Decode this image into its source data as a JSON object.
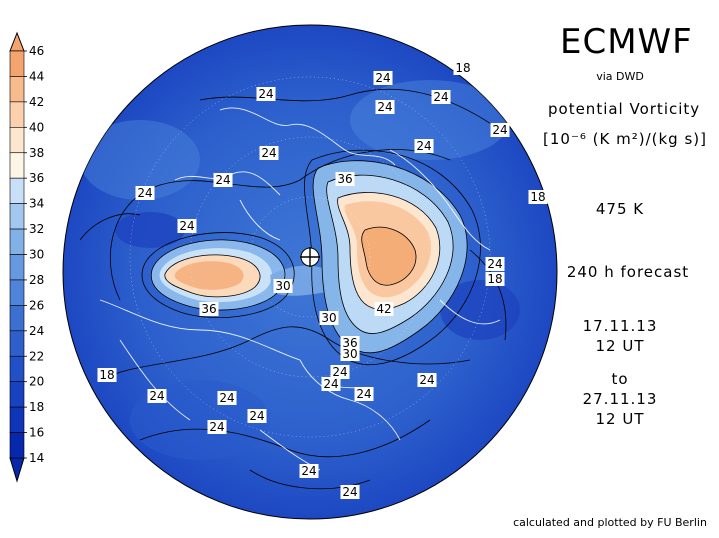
{
  "header": {
    "title": "ECMWF",
    "subtitle": "via DWD",
    "parameter": "potential Vorticity",
    "units": "[10⁻⁶ (K m²)/(kg s)]",
    "level": "475 K",
    "forecast": "240 h forecast",
    "valid_from_date": "17.11.13",
    "valid_from_time": "12 UT",
    "to_label": "to",
    "valid_to_date": "27.11.13",
    "valid_to_time": "12 UT"
  },
  "footer": {
    "credit": "calculated and plotted by FU Berlin"
  },
  "colorbar": {
    "ticks": [
      "46",
      "44",
      "42",
      "40",
      "38",
      "36",
      "34",
      "32",
      "30",
      "28",
      "26",
      "24",
      "22",
      "20",
      "18",
      "16",
      "14"
    ],
    "colors": [
      "#f4a46e",
      "#f7bb8c",
      "#fad0ae",
      "#fde6d0",
      "#fdf5e6",
      "#c7e0f7",
      "#a3c8ef",
      "#82b1e8",
      "#6699e0",
      "#4f84d8",
      "#3c70d0",
      "#2e5fcb",
      "#2250c6",
      "#1742c0",
      "#0f35b8",
      "#0728ad"
    ]
  },
  "map": {
    "contour_labels": [
      {
        "text": "24"
      },
      {
        "text": "18"
      },
      {
        "text": "24"
      },
      {
        "text": "24"
      },
      {
        "text": "24"
      },
      {
        "text": "24"
      },
      {
        "text": "24"
      },
      {
        "text": "24"
      },
      {
        "text": "18"
      },
      {
        "text": "24"
      },
      {
        "text": "24"
      },
      {
        "text": "36"
      },
      {
        "text": "24"
      },
      {
        "text": "18"
      },
      {
        "text": "24"
      },
      {
        "text": "36"
      },
      {
        "text": "30"
      },
      {
        "text": "30"
      },
      {
        "text": "42"
      },
      {
        "text": "36"
      },
      {
        "text": "30"
      },
      {
        "text": "24"
      },
      {
        "text": "18"
      },
      {
        "text": "24"
      },
      {
        "text": "24"
      },
      {
        "text": "24"
      },
      {
        "text": "24"
      },
      {
        "text": "24"
      },
      {
        "text": "24"
      },
      {
        "text": "24"
      },
      {
        "text": "24"
      },
      {
        "text": "24"
      }
    ]
  }
}
